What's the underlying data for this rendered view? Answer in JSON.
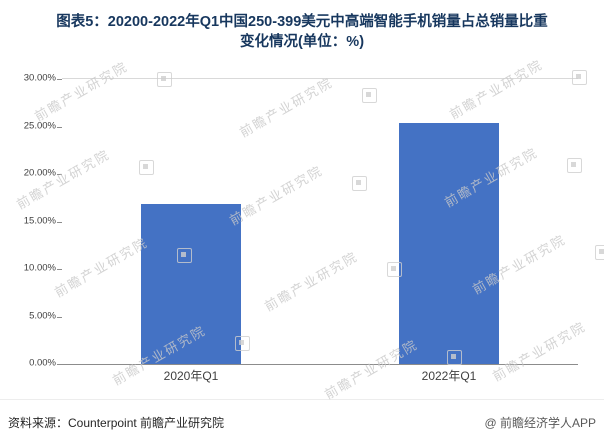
{
  "title": {
    "line1": "图表5：20200-2022年Q1中国250-399美元中高端智能手机销量占总销量比重",
    "line2": "变化情况(单位：%)"
  },
  "chart_data": {
    "type": "bar",
    "title": "图表5：20200-2022年Q1中国250-399美元中高端智能手机销量占总销量比重变化情况(单位：%)",
    "categories": [
      "2020年Q1",
      "2022年Q1"
    ],
    "values": [
      16.8,
      25.4
    ],
    "xlabel": "",
    "ylabel": "",
    "ylim": [
      0,
      30
    ],
    "yticks": [
      {
        "label": "30.00%",
        "value": 30
      },
      {
        "label": "25.00%",
        "value": 25
      },
      {
        "label": "20.00%",
        "value": 20
      },
      {
        "label": "15.00%",
        "value": 15
      },
      {
        "label": "10.00%",
        "value": 10
      },
      {
        "label": "5.00%",
        "value": 5
      },
      {
        "label": "0.00%",
        "value": 0
      }
    ],
    "bar_color": "#4472C4",
    "grid": "off",
    "legend": "none"
  },
  "watermark": {
    "text": "前瞻产业研究院"
  },
  "footer": {
    "source": "资料来源：Counterpoint 前瞻产业研究院",
    "brand": "@ 前瞻经济学人APP"
  }
}
